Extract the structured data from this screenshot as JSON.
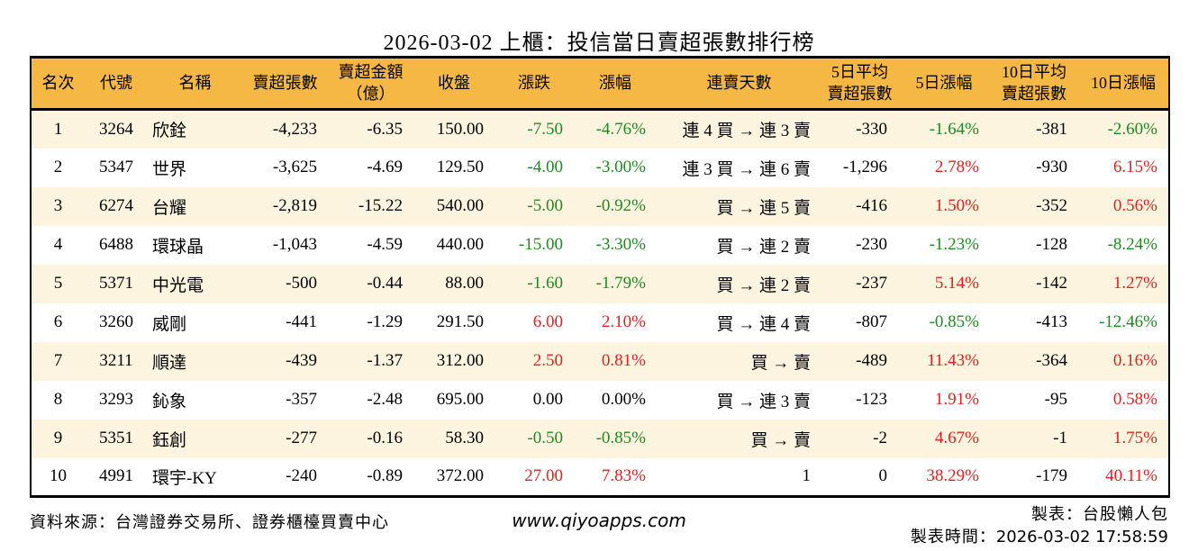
{
  "title": "2026-03-02 上櫃：投信當日賣超張數排行榜",
  "colors": {
    "up_red": "#e51f1f",
    "down_green": "#1e8b22",
    "neutral_black": "#000000",
    "header_bg": "#f6b845",
    "row_stripe": "#fdf4e0"
  },
  "chart_data": {
    "type": "table",
    "title": "2026-03-02 上櫃：投信當日賣超張數排行榜",
    "columns": [
      "名次",
      "代號",
      "名稱",
      "賣超張數",
      "賣超金額\n（億）",
      "收盤",
      "漲跌",
      "漲幅",
      "連賣天數",
      "5日平均\n賣超張數",
      "5日漲幅",
      "10日平均\n賣超張數",
      "10日漲幅"
    ],
    "rows": [
      [
        "1",
        "3264",
        "欣銓",
        "-4,233",
        "-6.35",
        "150.00",
        "-7.50",
        "-4.76%",
        "連 4 買 → 連 3 賣",
        "-330",
        "-1.64%",
        "-381",
        "-2.60%"
      ],
      [
        "2",
        "5347",
        "世界",
        "-3,625",
        "-4.69",
        "129.50",
        "-4.00",
        "-3.00%",
        "連 3 買 → 連 6 賣",
        "-1,296",
        "2.78%",
        "-930",
        "6.15%"
      ],
      [
        "3",
        "6274",
        "台耀",
        "-2,819",
        "-15.22",
        "540.00",
        "-5.00",
        "-0.92%",
        "買 → 連 5 賣",
        "-416",
        "1.50%",
        "-352",
        "0.56%"
      ],
      [
        "4",
        "6488",
        "環球晶",
        "-1,043",
        "-4.59",
        "440.00",
        "-15.00",
        "-3.30%",
        "買 → 連 2 賣",
        "-230",
        "-1.23%",
        "-128",
        "-8.24%"
      ],
      [
        "5",
        "5371",
        "中光電",
        "-500",
        "-0.44",
        "88.00",
        "-1.60",
        "-1.79%",
        "買 → 連 2 賣",
        "-237",
        "5.14%",
        "-142",
        "1.27%"
      ],
      [
        "6",
        "3260",
        "威剛",
        "-441",
        "-1.29",
        "291.50",
        "6.00",
        "2.10%",
        "買 → 連 4 賣",
        "-807",
        "-0.85%",
        "-413",
        "-12.46%"
      ],
      [
        "7",
        "3211",
        "順達",
        "-439",
        "-1.37",
        "312.00",
        "2.50",
        "0.81%",
        "買 → 賣",
        "-489",
        "11.43%",
        "-364",
        "0.16%"
      ],
      [
        "8",
        "3293",
        "鈊象",
        "-357",
        "-2.48",
        "695.00",
        "0.00",
        "0.00%",
        "買 → 連 3 賣",
        "-123",
        "1.91%",
        "-95",
        "0.58%"
      ],
      [
        "9",
        "5351",
        "鈺創",
        "-277",
        "-0.16",
        "58.30",
        "-0.50",
        "-0.85%",
        "買 → 賣",
        "-2",
        "4.67%",
        "-1",
        "1.75%"
      ],
      [
        "10",
        "4991",
        "環宇-KY",
        "-240",
        "-0.89",
        "372.00",
        "27.00",
        "7.83%",
        "1",
        "0",
        "38.29%",
        "-179",
        "40.11%"
      ]
    ],
    "color_rule": "positive values red, negative values green, zero black; applies to 漲跌/漲幅/5日漲幅/10日漲幅 columns"
  },
  "footer": {
    "source": "資料來源：台灣證券交易所、證券櫃檯買賣中心",
    "website": "www.qiyoapps.com",
    "prepared_by": "製表：台股懶人包",
    "prepared_time_label": "製表時間：",
    "prepared_time_value": "2026-03-02 17:58:59"
  }
}
